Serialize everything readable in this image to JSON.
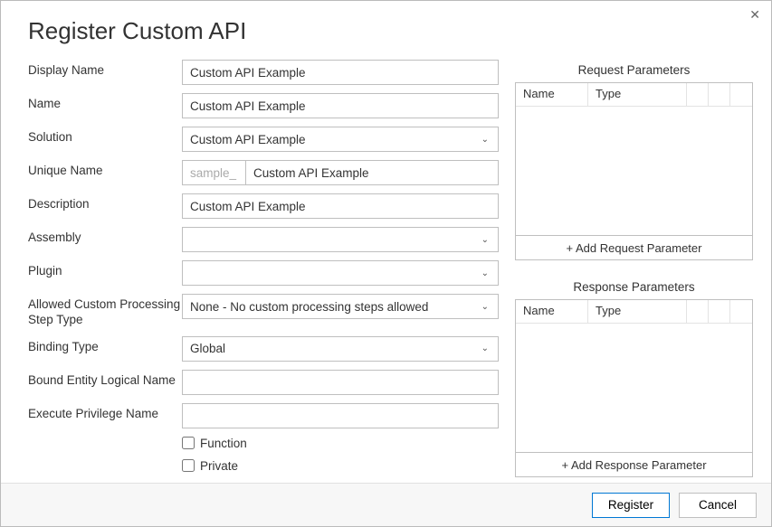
{
  "dialog": {
    "title": "Register Custom API",
    "close_icon": "✕"
  },
  "form": {
    "display_name": {
      "label": "Display Name",
      "value": "Custom API Example"
    },
    "name": {
      "label": "Name",
      "value": "Custom API Example"
    },
    "solution": {
      "label": "Solution",
      "value": "Custom API Example"
    },
    "unique_name": {
      "label": "Unique Name",
      "prefix": "sample_",
      "value": "Custom API Example"
    },
    "description": {
      "label": "Description",
      "value": "Custom API Example"
    },
    "assembly": {
      "label": "Assembly",
      "value": ""
    },
    "plugin": {
      "label": "Plugin",
      "value": ""
    },
    "allowed_custom": {
      "label": "Allowed Custom Processing Step Type",
      "value": "None - No custom processing steps allowed"
    },
    "binding_type": {
      "label": "Binding Type",
      "value": "Global"
    },
    "bound_entity": {
      "label": "Bound Entity Logical Name",
      "value": ""
    },
    "execute_priv": {
      "label": "Execute Privilege Name",
      "value": ""
    },
    "function_cb": {
      "label": "Function",
      "checked": false
    },
    "private_cb": {
      "label": "Private",
      "checked": false
    }
  },
  "request": {
    "title": "Request Parameters",
    "columns": {
      "name": "Name",
      "type": "Type"
    },
    "add_button": "+ Add Request Parameter"
  },
  "response": {
    "title": "Response Parameters",
    "columns": {
      "name": "Name",
      "type": "Type"
    },
    "add_button": "+ Add Response Parameter"
  },
  "footer": {
    "register": "Register",
    "cancel": "Cancel"
  }
}
